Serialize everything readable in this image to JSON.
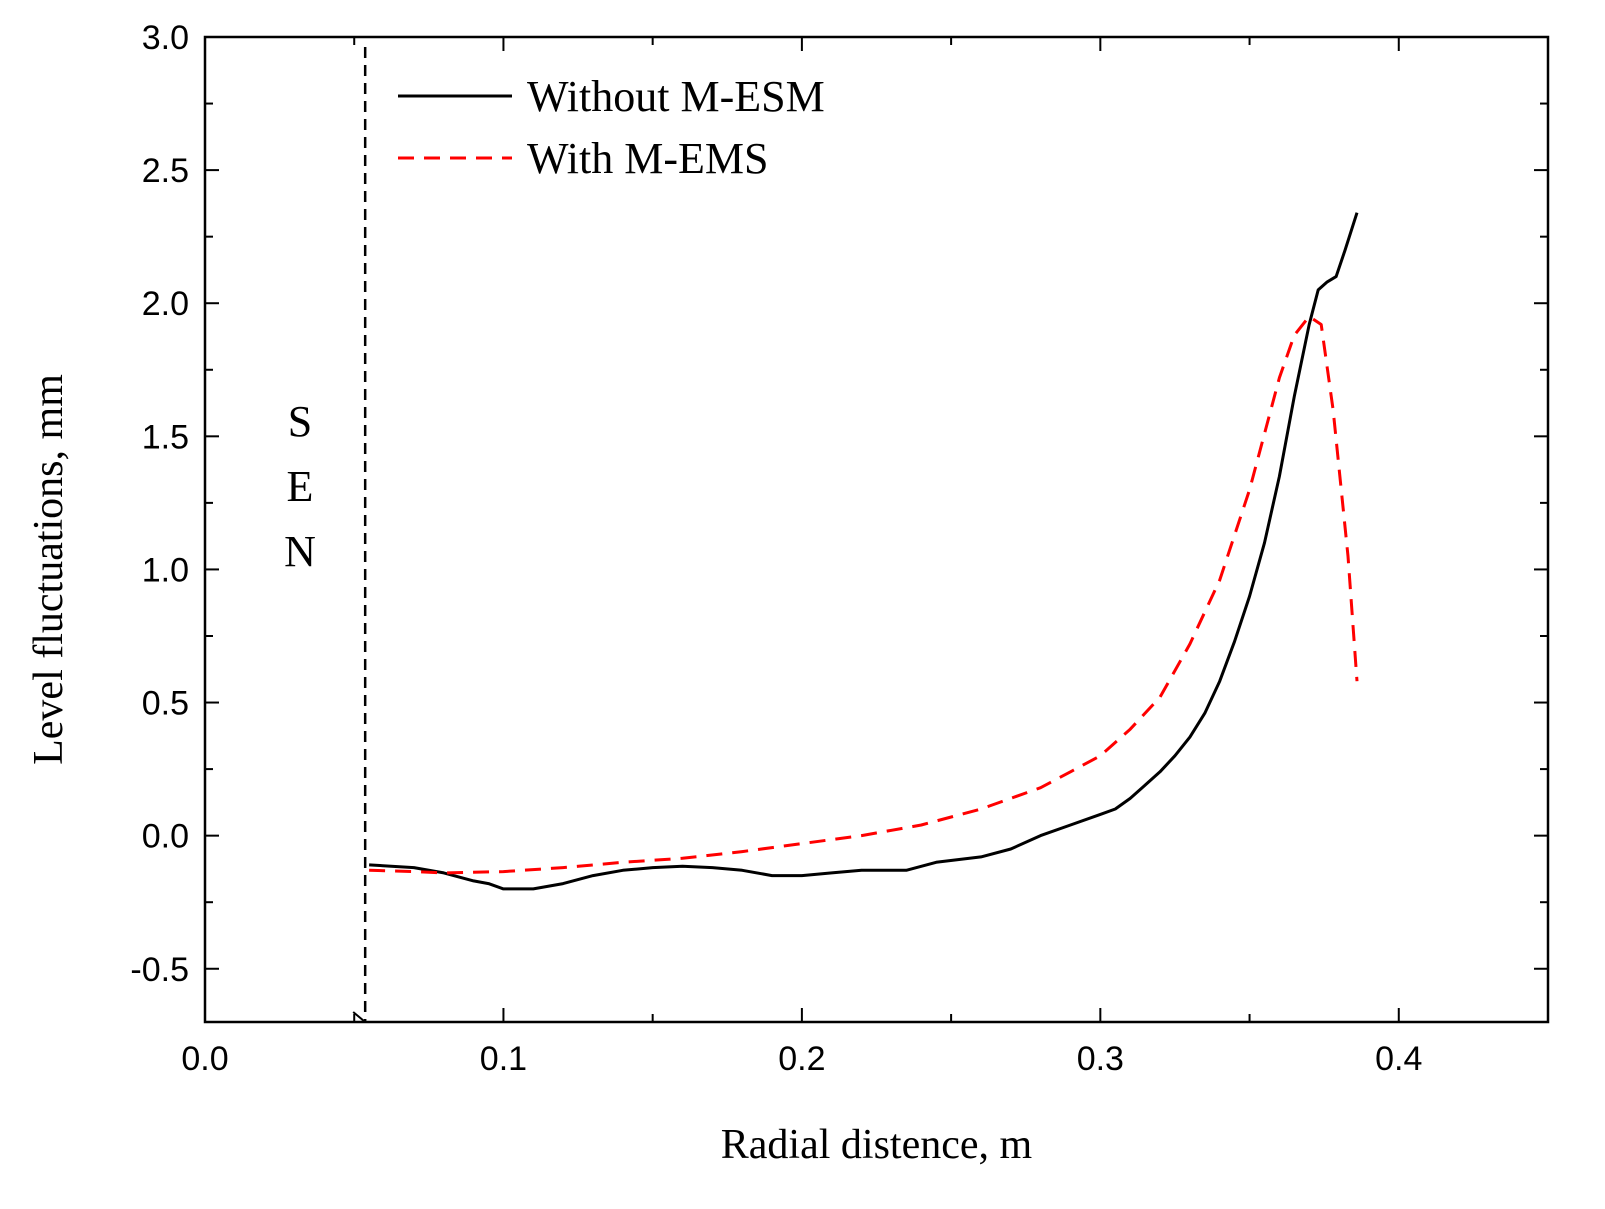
{
  "chart_data": {
    "type": "line",
    "title": "",
    "xlabel": "Radial distence,  m",
    "ylabel": "Level fluctuations,  mm",
    "xlim": [
      0.0,
      0.45
    ],
    "ylim": [
      -0.7,
      3.0
    ],
    "x_ticks": [
      {
        "value": 0.0,
        "label": "0.0"
      },
      {
        "value": 0.1,
        "label": "0.1"
      },
      {
        "value": 0.2,
        "label": "0.2"
      },
      {
        "value": 0.3,
        "label": "0.3"
      },
      {
        "value": 0.4,
        "label": "0.4"
      }
    ],
    "y_ticks": [
      {
        "value": -0.5,
        "label": "-0.5"
      },
      {
        "value": 0.0,
        "label": "0.0"
      },
      {
        "value": 0.5,
        "label": "0.5"
      },
      {
        "value": 1.0,
        "label": "1.0"
      },
      {
        "value": 1.5,
        "label": "1.5"
      },
      {
        "value": 2.0,
        "label": "2.0"
      },
      {
        "value": 2.5,
        "label": "2.5"
      },
      {
        "value": 3.0,
        "label": "3.0"
      }
    ],
    "grid": false,
    "legend_position": "top-left",
    "series": [
      {
        "name": "Without M-ESM",
        "color": "#000000",
        "style": "solid",
        "points": [
          [
            0.055,
            -0.11
          ],
          [
            0.07,
            -0.12
          ],
          [
            0.08,
            -0.14
          ],
          [
            0.09,
            -0.17
          ],
          [
            0.095,
            -0.18
          ],
          [
            0.1,
            -0.2
          ],
          [
            0.11,
            -0.2
          ],
          [
            0.12,
            -0.18
          ],
          [
            0.13,
            -0.15
          ],
          [
            0.14,
            -0.13
          ],
          [
            0.15,
            -0.12
          ],
          [
            0.16,
            -0.115
          ],
          [
            0.17,
            -0.12
          ],
          [
            0.18,
            -0.13
          ],
          [
            0.19,
            -0.15
          ],
          [
            0.2,
            -0.15
          ],
          [
            0.21,
            -0.14
          ],
          [
            0.22,
            -0.13
          ],
          [
            0.235,
            -0.13
          ],
          [
            0.245,
            -0.1
          ],
          [
            0.26,
            -0.08
          ],
          [
            0.27,
            -0.05
          ],
          [
            0.28,
            0.0
          ],
          [
            0.29,
            0.04
          ],
          [
            0.3,
            0.08
          ],
          [
            0.305,
            0.1
          ],
          [
            0.31,
            0.14
          ],
          [
            0.315,
            0.19
          ],
          [
            0.32,
            0.24
          ],
          [
            0.325,
            0.3
          ],
          [
            0.33,
            0.37
          ],
          [
            0.335,
            0.46
          ],
          [
            0.34,
            0.58
          ],
          [
            0.345,
            0.73
          ],
          [
            0.35,
            0.9
          ],
          [
            0.355,
            1.1
          ],
          [
            0.36,
            1.35
          ],
          [
            0.365,
            1.65
          ],
          [
            0.37,
            1.92
          ],
          [
            0.373,
            2.05
          ],
          [
            0.376,
            2.08
          ],
          [
            0.379,
            2.1
          ],
          [
            0.382,
            2.2
          ],
          [
            0.386,
            2.34
          ]
        ]
      },
      {
        "name": "With M-EMS",
        "color": "#ff0000",
        "style": "dashed",
        "points": [
          [
            0.055,
            -0.13
          ],
          [
            0.07,
            -0.135
          ],
          [
            0.08,
            -0.14
          ],
          [
            0.1,
            -0.135
          ],
          [
            0.12,
            -0.12
          ],
          [
            0.14,
            -0.1
          ],
          [
            0.16,
            -0.085
          ],
          [
            0.18,
            -0.06
          ],
          [
            0.2,
            -0.03
          ],
          [
            0.22,
            0.0
          ],
          [
            0.24,
            0.04
          ],
          [
            0.26,
            0.1
          ],
          [
            0.28,
            0.18
          ],
          [
            0.29,
            0.24
          ],
          [
            0.3,
            0.3
          ],
          [
            0.31,
            0.4
          ],
          [
            0.32,
            0.52
          ],
          [
            0.33,
            0.72
          ],
          [
            0.34,
            0.96
          ],
          [
            0.35,
            1.3
          ],
          [
            0.36,
            1.72
          ],
          [
            0.365,
            1.88
          ],
          [
            0.37,
            1.95
          ],
          [
            0.374,
            1.92
          ],
          [
            0.378,
            1.6
          ],
          [
            0.383,
            1.05
          ],
          [
            0.386,
            0.58
          ]
        ]
      }
    ],
    "annotations": {
      "sen_letters": [
        "S",
        "E",
        "N"
      ],
      "sen_line_x": 0.053,
      "sen_line_style": "dashed"
    }
  }
}
